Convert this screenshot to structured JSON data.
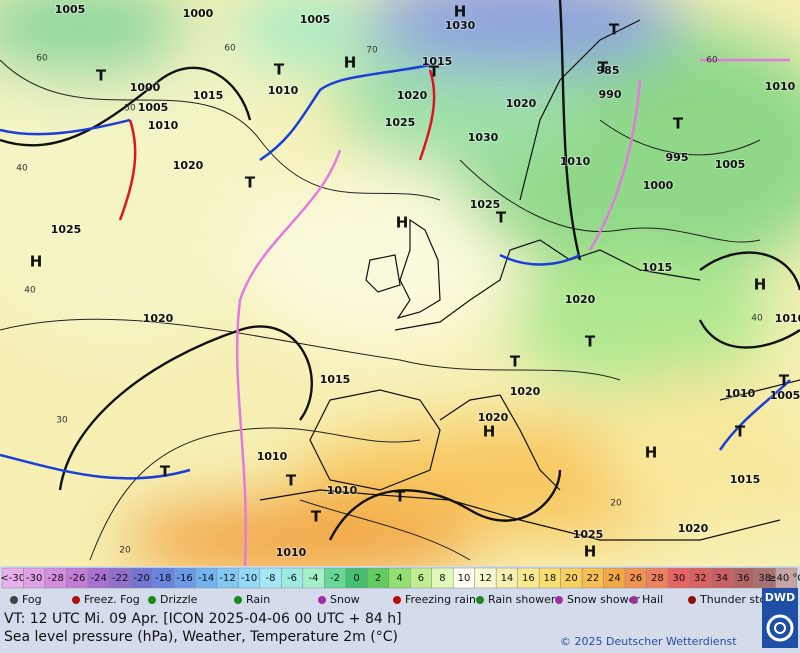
{
  "map": {
    "pressure_labels": [
      "1005",
      "1000",
      "1005",
      "1030",
      "1000",
      "1005",
      "1010",
      "1015",
      "1010",
      "1015",
      "1020",
      "1025",
      "1030",
      "1020",
      "1020",
      "1010",
      "995",
      "1005",
      "1000",
      "990",
      "985",
      "1010",
      "1025",
      "1025",
      "1015",
      "1020",
      "1020",
      "1015",
      "1020",
      "1020",
      "1010",
      "1010",
      "1010",
      "1015",
      "1025",
      "1020",
      "1010",
      "1005",
      "1010"
    ],
    "highs": [
      "H",
      "H",
      "H",
      "H",
      "H",
      "H",
      "H",
      "H"
    ],
    "lows": [
      "T",
      "T",
      "T",
      "T",
      "T",
      "T",
      "T",
      "T",
      "T",
      "T",
      "T",
      "T",
      "T",
      "T",
      "T",
      "T"
    ],
    "temperature_labels": [
      "60",
      "50",
      "40",
      "40",
      "30",
      "20",
      "70",
      "60",
      "60",
      "40",
      "20"
    ]
  },
  "colorbar": {
    "low_label": "<-30",
    "low_color": "#e8b0ec",
    "steps": [
      {
        "label": "-30",
        "color": "#e0a0e6"
      },
      {
        "label": "-28",
        "color": "#d48ee0"
      },
      {
        "label": "-26",
        "color": "#c47cd8"
      },
      {
        "label": "-24",
        "color": "#a870d2"
      },
      {
        "label": "-22",
        "color": "#9070cc"
      },
      {
        "label": "-20",
        "color": "#7474d4"
      },
      {
        "label": "-18",
        "color": "#6684e0"
      },
      {
        "label": "-16",
        "color": "#6a9ae8"
      },
      {
        "label": "-14",
        "color": "#72b2f0"
      },
      {
        "label": "-12",
        "color": "#82c8f2"
      },
      {
        "label": "-10",
        "color": "#94daf8"
      },
      {
        "label": "-8",
        "color": "#a4e8f6"
      },
      {
        "label": "-6",
        "color": "#9ceae0"
      },
      {
        "label": "-4",
        "color": "#a6f0c8"
      },
      {
        "label": "-2",
        "color": "#66d896"
      },
      {
        "label": "0",
        "color": "#44c070"
      },
      {
        "label": "2",
        "color": "#62cc60"
      },
      {
        "label": "4",
        "color": "#92e070"
      },
      {
        "label": "6",
        "color": "#c0ee90"
      },
      {
        "label": "8",
        "color": "#e0f8b8"
      },
      {
        "label": "10",
        "color": "#fffff2"
      },
      {
        "label": "12",
        "color": "#f8f8d0"
      },
      {
        "label": "14",
        "color": "#f8f0b0"
      },
      {
        "label": "16",
        "color": "#f8e890"
      },
      {
        "label": "18",
        "color": "#f8e070"
      },
      {
        "label": "20",
        "color": "#f8d060"
      },
      {
        "label": "22",
        "color": "#f8c050"
      },
      {
        "label": "24",
        "color": "#f2a844"
      },
      {
        "label": "26",
        "color": "#f09250"
      },
      {
        "label": "28",
        "color": "#ee8060"
      },
      {
        "label": "30",
        "color": "#e86464"
      },
      {
        "label": "32",
        "color": "#d86262"
      },
      {
        "label": "34",
        "color": "#c86262"
      },
      {
        "label": "36",
        "color": "#b46464"
      },
      {
        "label": "38",
        "color": "#a87272"
      }
    ],
    "high_label": "≥40 °C",
    "high_color": "#c4a4a4"
  },
  "legend": [
    "Fog",
    "Freez. Fog",
    "Drizzle",
    "Rain",
    "Snow",
    "Freezing rain",
    "Rain shower",
    "Snow shower",
    "Hail",
    "Thunder storm"
  ],
  "footer": {
    "valid_time": "VT: 12 UTC Mi.  09 Apr. [ICON 2025-04-06  00 UTC + 84 h]",
    "description": "Sea level pressure (hPa), Weather, Temperature 2m (°C)",
    "copyright": "© 2025 Deutscher Wetterdienst",
    "logo": "DWD"
  }
}
